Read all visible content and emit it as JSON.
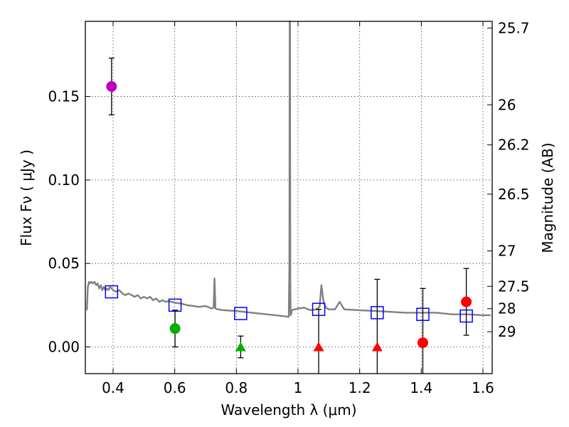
{
  "chart_data": {
    "type": "scatter",
    "title": "",
    "xlabel": "Wavelength  λ (μm)",
    "ylabel": "Flux  Fν  ( μJy )",
    "y2label": "Magnitude (AB)",
    "xlim": [
      0.31,
      1.63
    ],
    "ylim": [
      -0.016,
      0.195
    ],
    "grid": true,
    "x_ticks": [
      0.4,
      0.6,
      0.8,
      1.0,
      1.2,
      1.4,
      1.6
    ],
    "x_tick_labels": [
      "0.4",
      "0.6",
      "0.8",
      "1",
      "1.2",
      "1.4",
      "1.6"
    ],
    "y_ticks": [
      0.0,
      0.05,
      0.1,
      0.15
    ],
    "y_tick_labels": [
      "0.00",
      "0.05",
      "0.10",
      "0.15"
    ],
    "y2_ticks": [
      {
        "label": "25.7",
        "flux": 0.191
      },
      {
        "label": "26",
        "flux": 0.145
      },
      {
        "label": "26.2",
        "flux": 0.121
      },
      {
        "label": "26.5",
        "flux": 0.0915
      },
      {
        "label": "27",
        "flux": 0.0575
      },
      {
        "label": "27.5",
        "flux": 0.0363
      },
      {
        "label": "28",
        "flux": 0.0229
      },
      {
        "label": "29",
        "flux": 0.0091
      }
    ],
    "model_spectrum": {
      "name": "model SED",
      "color": "#808080",
      "x": [
        0.315,
        0.318,
        0.322,
        0.325,
        0.33,
        0.335,
        0.34,
        0.345,
        0.35,
        0.355,
        0.36,
        0.365,
        0.37,
        0.375,
        0.38,
        0.385,
        0.39,
        0.4,
        0.41,
        0.42,
        0.43,
        0.44,
        0.45,
        0.46,
        0.47,
        0.48,
        0.49,
        0.5,
        0.51,
        0.52,
        0.53,
        0.54,
        0.55,
        0.56,
        0.57,
        0.58,
        0.6,
        0.62,
        0.64,
        0.66,
        0.68,
        0.7,
        0.72,
        0.726,
        0.729,
        0.732,
        0.74,
        0.76,
        0.8,
        0.85,
        0.9,
        0.95,
        0.97,
        0.972,
        0.973,
        0.974,
        0.975,
        0.976,
        0.978,
        0.98,
        1.0,
        1.02,
        1.04,
        1.06,
        1.07,
        1.076,
        1.082,
        1.09,
        1.1,
        1.12,
        1.135,
        1.15,
        1.2,
        1.25,
        1.3,
        1.35,
        1.4,
        1.45,
        1.5,
        1.55,
        1.6,
        1.625
      ],
      "y": [
        0.022,
        0.036,
        0.039,
        0.038,
        0.039,
        0.038,
        0.039,
        0.037,
        0.038,
        0.035,
        0.037,
        0.034,
        0.036,
        0.034,
        0.035,
        0.034,
        0.036,
        0.034,
        0.033,
        0.034,
        0.032,
        0.031,
        0.032,
        0.031,
        0.03,
        0.031,
        0.029,
        0.03,
        0.029,
        0.03,
        0.028,
        0.029,
        0.027,
        0.028,
        0.027,
        0.0275,
        0.0265,
        0.026,
        0.025,
        0.0245,
        0.024,
        0.0245,
        0.023,
        0.0235,
        0.041,
        0.023,
        0.0225,
        0.022,
        0.0215,
        0.0205,
        0.0195,
        0.0185,
        0.018,
        0.05,
        0.2,
        0.2,
        0.04,
        0.019,
        0.02,
        0.022,
        0.023,
        0.0235,
        0.022,
        0.0225,
        0.024,
        0.037,
        0.028,
        0.0235,
        0.0225,
        0.0225,
        0.027,
        0.0225,
        0.022,
        0.0215,
        0.021,
        0.0205,
        0.0205,
        0.0205,
        0.0195,
        0.0195,
        0.019,
        0.019
      ]
    },
    "series": [
      {
        "name": "violet detection",
        "marker": "circle",
        "color": "#bf00bf",
        "points": [
          {
            "x": 0.395,
            "y": 0.156,
            "yerr": 0.017
          }
        ]
      },
      {
        "name": "green detection",
        "marker": "circle",
        "color": "#00b000",
        "points": [
          {
            "x": 0.601,
            "y": 0.011,
            "yerr": 0.011
          }
        ]
      },
      {
        "name": "green upper limit",
        "marker": "triangle",
        "color": "#00b000",
        "points": [
          {
            "x": 0.814,
            "y": 0.0,
            "yerr": 0.0065
          }
        ]
      },
      {
        "name": "red upper limits",
        "marker": "triangle",
        "color": "#ff0000",
        "points": [
          {
            "x": 1.067,
            "y": 0.0,
            "yerr": 0.0225
          },
          {
            "x": 1.257,
            "y": 0.0,
            "yerr": 0.0405
          }
        ]
      },
      {
        "name": "red detections",
        "marker": "circle",
        "color": "#ff0000",
        "points": [
          {
            "x": 1.405,
            "y": 0.0025,
            "yerr": 0.0325
          },
          {
            "x": 1.546,
            "y": 0.027,
            "yerr": 0.02
          }
        ]
      },
      {
        "name": "model photometry",
        "marker": "square-open",
        "color": "#0000ff",
        "points": [
          {
            "x": 0.395,
            "y": 0.033
          },
          {
            "x": 0.601,
            "y": 0.025
          },
          {
            "x": 0.814,
            "y": 0.02
          },
          {
            "x": 1.067,
            "y": 0.0225
          },
          {
            "x": 1.257,
            "y": 0.0205
          },
          {
            "x": 1.405,
            "y": 0.0195
          },
          {
            "x": 1.546,
            "y": 0.0185
          }
        ]
      }
    ]
  }
}
